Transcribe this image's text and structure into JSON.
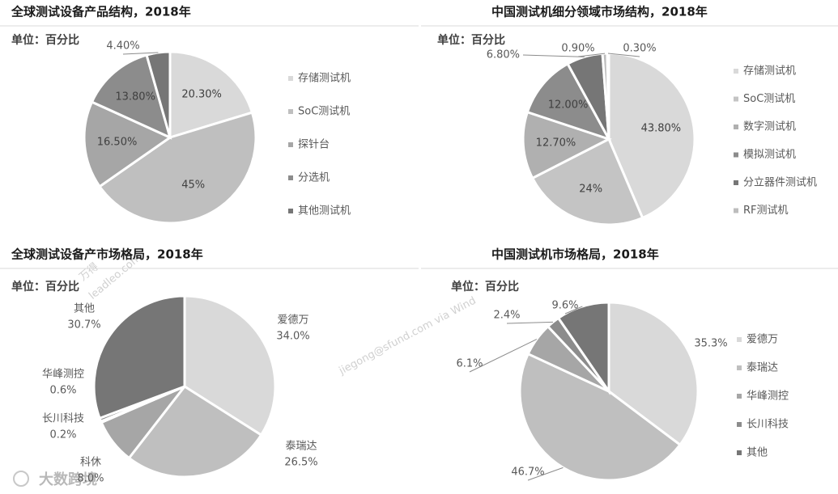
{
  "chart_data": [
    {
      "type": "pie",
      "title": "全球测试设备产品结构，2018年",
      "subtitle": "单位：百分比",
      "categories": [
        "存储测试机",
        "SoC测试机",
        "探针台",
        "分选机",
        "其他测试机"
      ],
      "values": [
        20.3,
        45,
        16.5,
        13.8,
        4.4
      ],
      "value_labels": [
        "20.30%",
        "45%",
        "16.50%",
        "13.80%",
        "4.40%"
      ],
      "colors": [
        "#d9d9d9",
        "#bfbfbf",
        "#a6a6a6",
        "#8c8c8c",
        "#767676"
      ],
      "legend": "right"
    },
    {
      "type": "pie",
      "title": "中国测试机细分领域市场结构，2018年",
      "subtitle": "单位：百分比",
      "categories": [
        "存储测试机",
        "SoC测试机",
        "数字测试机",
        "模拟测试机",
        "分立器件测试机",
        "RF测试机",
        null
      ],
      "values": [
        43.8,
        24,
        12.7,
        12,
        6.8,
        0.9,
        0.3
      ],
      "value_labels": [
        "43.80%",
        "24%",
        "12.70%",
        "12.00%",
        "6.80%",
        "0.90%",
        "0.30%"
      ],
      "colors": [
        "#d9d9d9",
        "#c4c4c4",
        "#b0b0b0",
        "#8c8c8c",
        "#767676",
        "#bdbdbd",
        "#d9d9d9"
      ],
      "legend": "right"
    },
    {
      "type": "pie",
      "title": "全球测试设备产市场格局，2018年",
      "subtitle": "单位：百分比",
      "categories": [
        "爱德万",
        "泰瑞达",
        "科休",
        "长川科技",
        "华峰测控",
        "其他"
      ],
      "values": [
        34.0,
        26.5,
        8.0,
        0.2,
        0.6,
        30.7
      ],
      "value_labels": [
        "34.0%",
        "26.5%",
        "8.0%",
        "0.2%",
        "0.6%",
        "30.7%"
      ],
      "colors": [
        "#d9d9d9",
        "#bfbfbf",
        "#a6a6a6",
        "#8c8c8c",
        "#8c8c8c",
        "#767676"
      ]
    },
    {
      "type": "pie",
      "title": "中国测试机市场格局，2018年",
      "subtitle": "单位：百分比",
      "categories": [
        "爱德万",
        "泰瑞达",
        "华峰测控",
        "长川科技",
        "其他"
      ],
      "values": [
        35.3,
        46.7,
        6.1,
        2.4,
        9.6
      ],
      "value_labels": [
        "35.3%",
        "46.7%",
        "6.1%",
        "2.4%",
        "9.6%"
      ],
      "colors": [
        "#d9d9d9",
        "#bfbfbf",
        "#a6a6a6",
        "#8c8c8c",
        "#767676"
      ],
      "legend": "right"
    }
  ],
  "watermarks": [
    "万得",
    "leadleo.com",
    "jiegong@sfund.com via Wind",
    "大数跨境"
  ]
}
